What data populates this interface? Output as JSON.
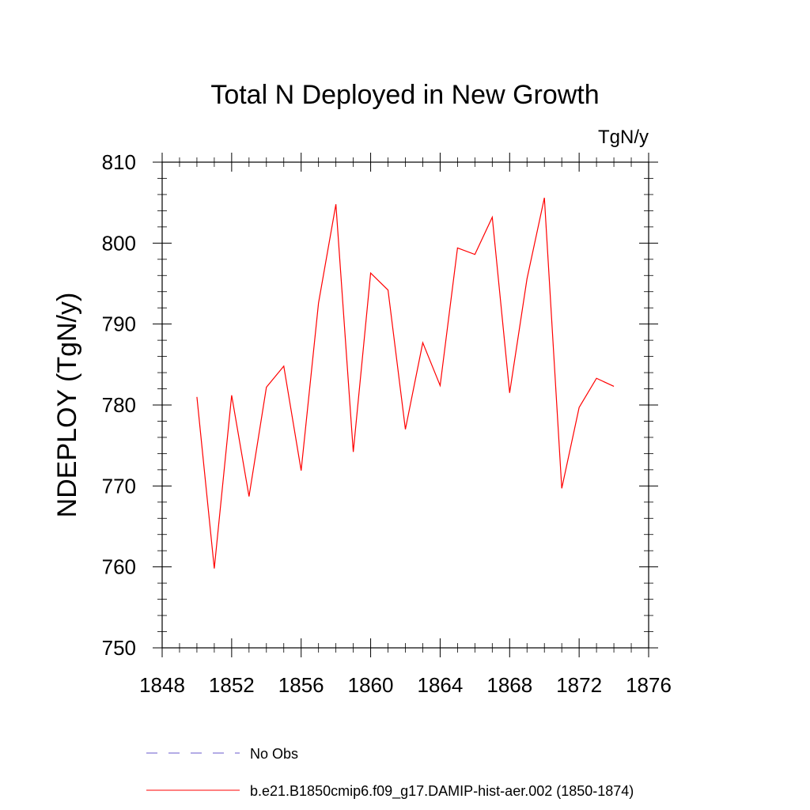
{
  "chart_data": {
    "type": "line",
    "title": "Total N Deployed in New Growth",
    "units_label": "TgN/y",
    "ylabel": "NDEPLOY  (TgN/y)",
    "xlabel": "",
    "xlim": [
      1848,
      1876
    ],
    "ylim": [
      750,
      810
    ],
    "x_ticks": [
      1848,
      1852,
      1856,
      1860,
      1864,
      1868,
      1872,
      1876
    ],
    "y_ticks": [
      750,
      760,
      770,
      780,
      790,
      800,
      810
    ],
    "grid": false,
    "x": [
      1850,
      1851,
      1852,
      1853,
      1854,
      1855,
      1856,
      1857,
      1858,
      1859,
      1860,
      1861,
      1862,
      1863,
      1864,
      1865,
      1866,
      1867,
      1868,
      1869,
      1870,
      1871,
      1872,
      1873,
      1874
    ],
    "series": [
      {
        "name": "b.e21.B1850cmip6.f09_g17.DAMIP-hist-aer.002 (1850-1874)",
        "color": "#ff0000",
        "style": "solid",
        "values": [
          781.0,
          759.8,
          781.2,
          768.7,
          782.2,
          784.8,
          771.9,
          792.6,
          804.8,
          774.2,
          796.3,
          794.2,
          777.0,
          787.7,
          782.4,
          799.4,
          798.6,
          803.2,
          781.5,
          795.6,
          805.6,
          769.7,
          779.7,
          783.3,
          782.3
        ]
      }
    ],
    "legend": {
      "placement": "bottom",
      "entries": [
        {
          "label": "No Obs",
          "color": "#6a5acd",
          "style": "dashed"
        },
        {
          "label": "b.e21.B1850cmip6.f09_g17.DAMIP-hist-aer.002 (1850-1874)",
          "color": "#ff0000",
          "style": "solid"
        }
      ]
    }
  }
}
